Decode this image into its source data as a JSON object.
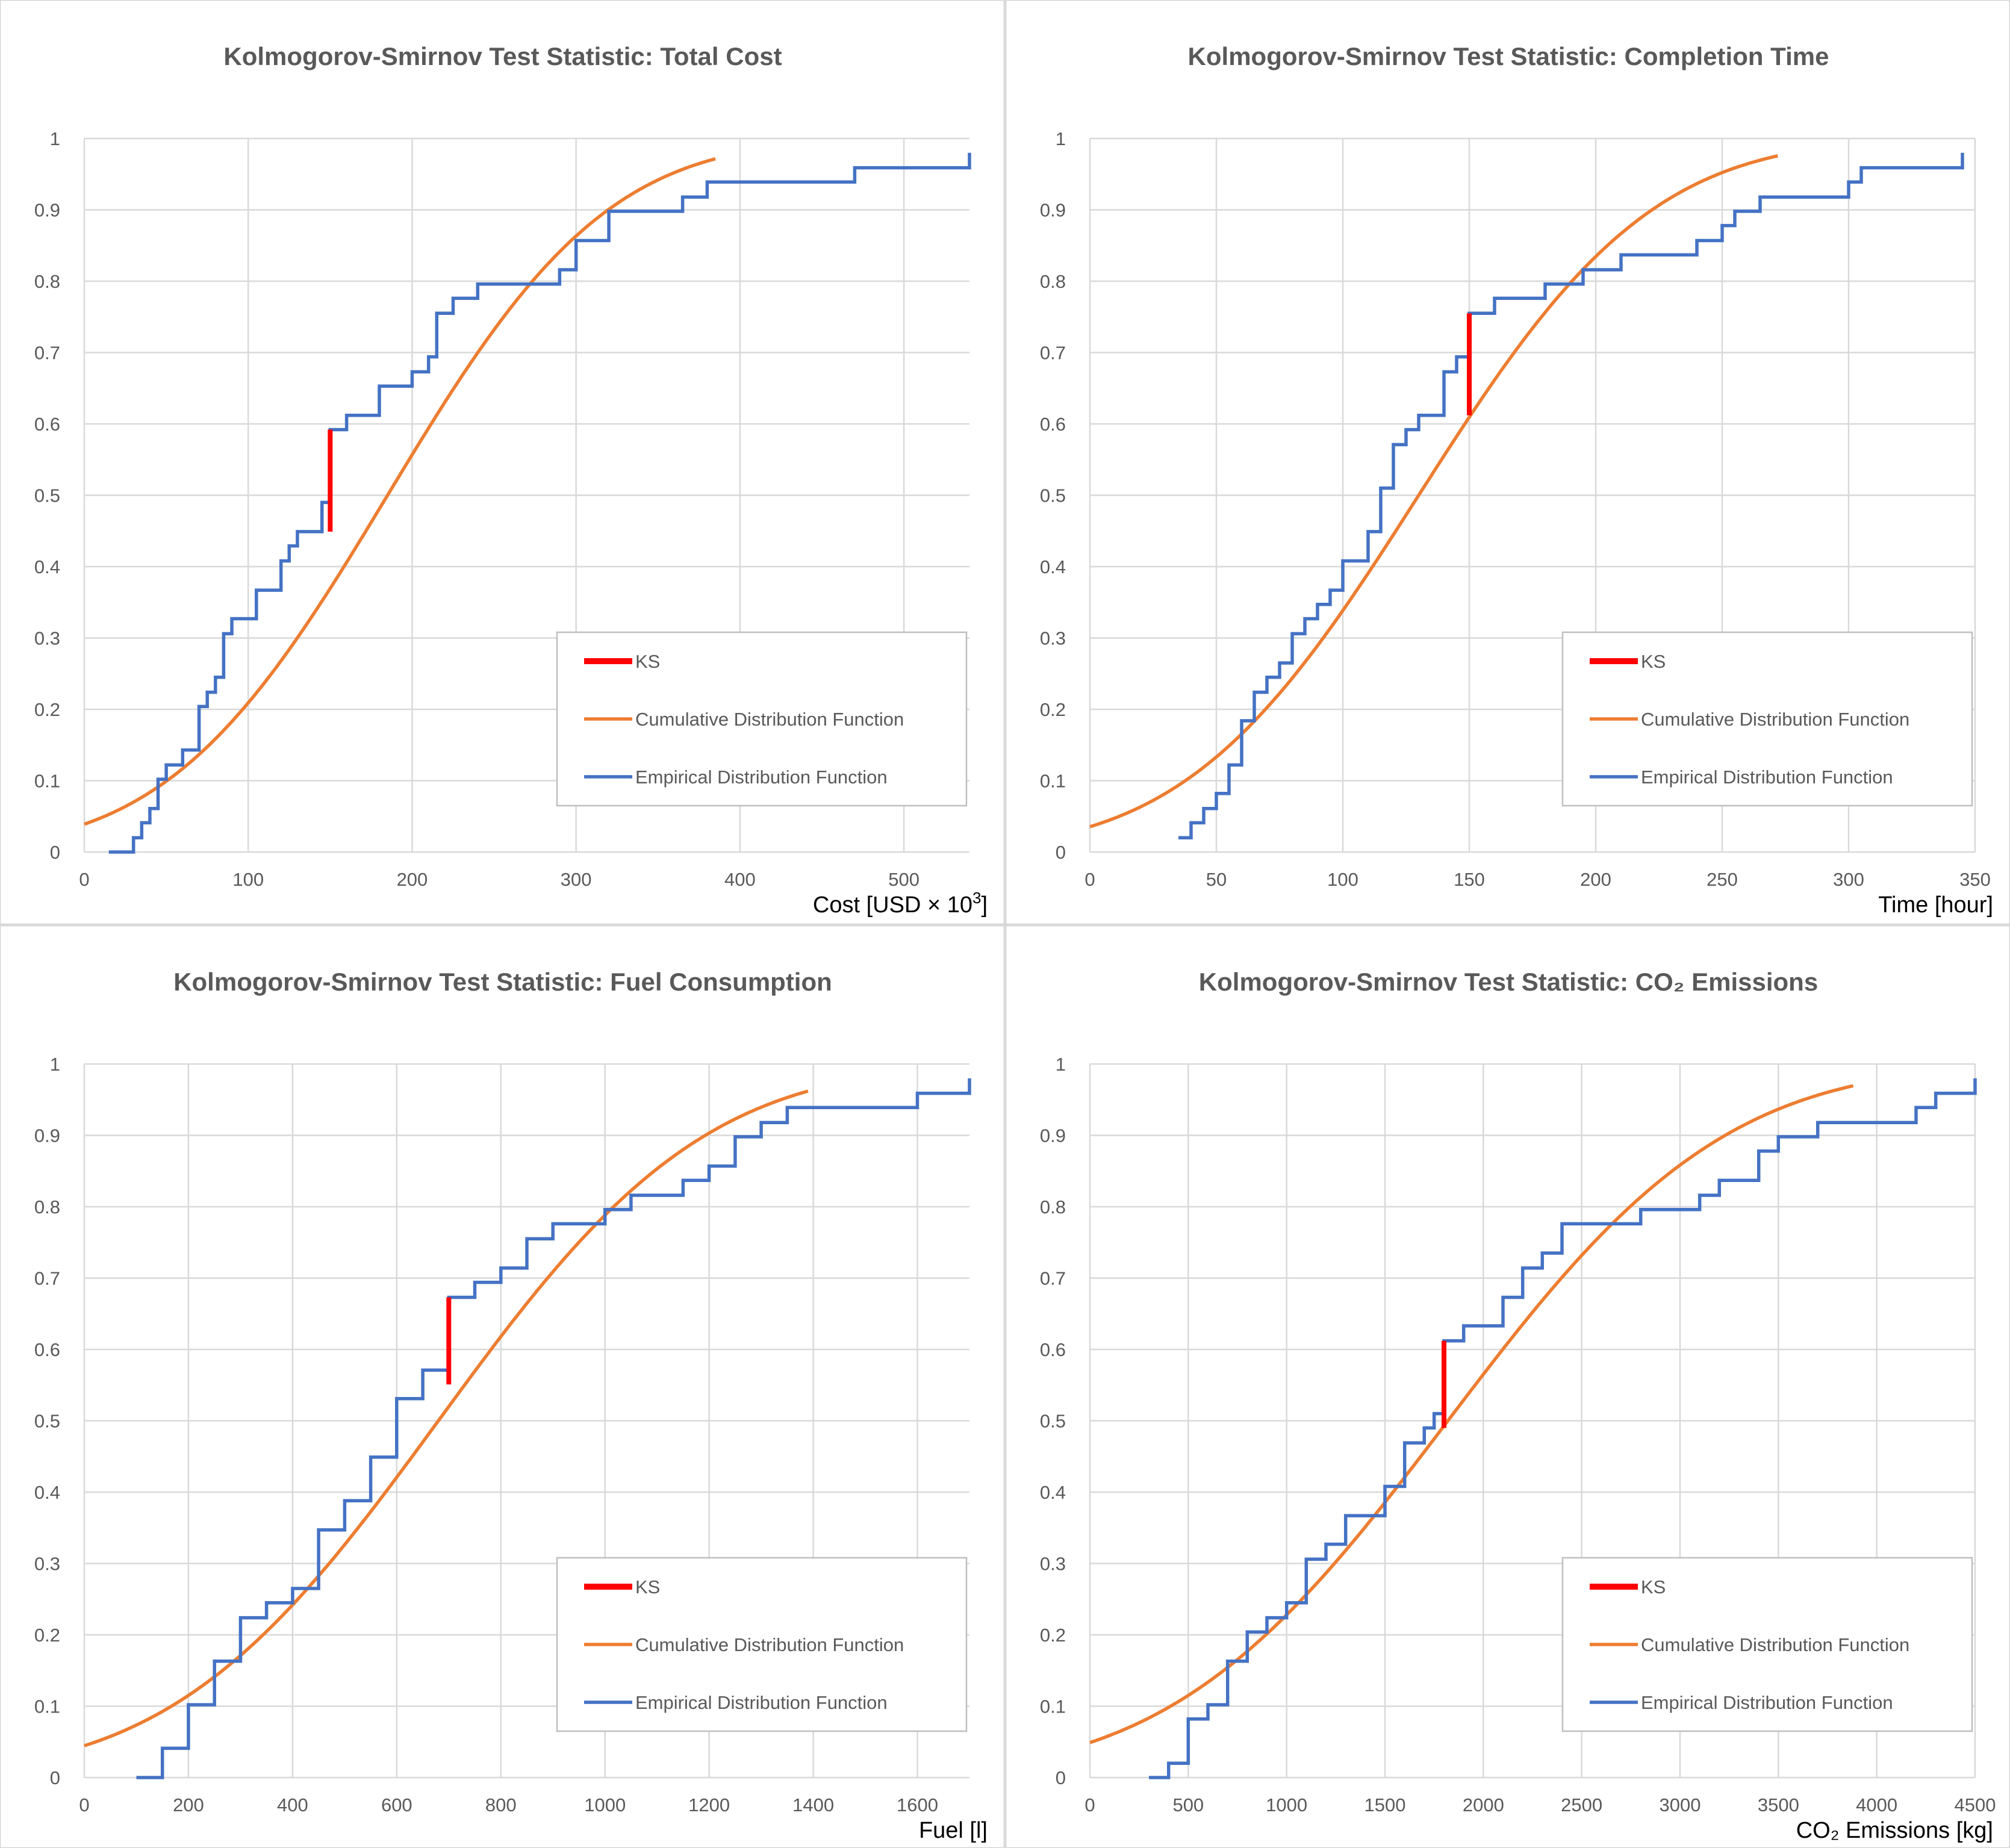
{
  "chart_data": [
    {
      "type": "line",
      "title": "Kolmogorov-Smirnov Test Statistic: Total Cost",
      "xlabel": "Cost [USD × 10",
      "xlabel_sup": "3",
      "xlabel_tail": "]",
      "ylabel": "",
      "xlim": [
        0,
        540
      ],
      "ylim": [
        0,
        1
      ],
      "xticks": [
        0,
        100,
        200,
        300,
        400,
        500
      ],
      "yticks": [
        0,
        0.1,
        0.2,
        0.3,
        0.4,
        0.5,
        0.6,
        0.7,
        0.8,
        0.9,
        1
      ],
      "grid": true,
      "legend_position": "bottom-right",
      "legend": [
        "KS",
        "Cumulative Distribution Function",
        "Empirical Distribution Function"
      ],
      "colors": {
        "ks": "#ff0000",
        "cdf": "#ed7d31",
        "edf": "#4472c4"
      },
      "cdf": {
        "mean": 185,
        "sd": 105,
        "x_end": 385
      },
      "edf_steps": [
        [
          15,
          0
        ],
        [
          30,
          0.02
        ],
        [
          35,
          0.041
        ],
        [
          40,
          0.061
        ],
        [
          45,
          0.102
        ],
        [
          50,
          0.122
        ],
        [
          60,
          0.143
        ],
        [
          70,
          0.204
        ],
        [
          75,
          0.224
        ],
        [
          80,
          0.245
        ],
        [
          85,
          0.306
        ],
        [
          90,
          0.327
        ],
        [
          105,
          0.367
        ],
        [
          120,
          0.408
        ],
        [
          125,
          0.429
        ],
        [
          130,
          0.449
        ],
        [
          145,
          0.49
        ],
        [
          150,
          0.592
        ],
        [
          160,
          0.612
        ],
        [
          180,
          0.653
        ],
        [
          200,
          0.673
        ],
        [
          210,
          0.694
        ],
        [
          215,
          0.755
        ],
        [
          225,
          0.776
        ],
        [
          240,
          0.796
        ],
        [
          290,
          0.816
        ],
        [
          300,
          0.857
        ],
        [
          320,
          0.898
        ],
        [
          365,
          0.918
        ],
        [
          380,
          0.939
        ],
        [
          470,
          0.959
        ],
        [
          540,
          0.98
        ]
      ],
      "ks": {
        "x": 150,
        "y_low": 0.449,
        "y_high": 0.592
      }
    },
    {
      "type": "line",
      "title": "Kolmogorov-Smirnov Test Statistic: Completion Time",
      "xlabel": "Time [hour]",
      "xlabel_sup": "",
      "xlabel_tail": "",
      "ylabel": "",
      "xlim": [
        0,
        350
      ],
      "ylim": [
        0,
        1
      ],
      "xticks": [
        0,
        50,
        100,
        150,
        200,
        250,
        300,
        350
      ],
      "yticks": [
        0,
        0.1,
        0.2,
        0.3,
        0.4,
        0.5,
        0.6,
        0.7,
        0.8,
        0.9,
        1
      ],
      "grid": true,
      "legend_position": "bottom-right",
      "legend": [
        "KS",
        "Cumulative Distribution Function",
        "Empirical Distribution Function"
      ],
      "colors": {
        "ks": "#ff0000",
        "cdf": "#ed7d31",
        "edf": "#4472c4"
      },
      "cdf": {
        "mean": 130,
        "sd": 72,
        "x_end": 272
      },
      "edf_steps": [
        [
          35,
          0.02
        ],
        [
          40,
          0.041
        ],
        [
          45,
          0.061
        ],
        [
          50,
          0.082
        ],
        [
          55,
          0.122
        ],
        [
          60,
          0.184
        ],
        [
          65,
          0.224
        ],
        [
          70,
          0.245
        ],
        [
          75,
          0.265
        ],
        [
          80,
          0.306
        ],
        [
          85,
          0.327
        ],
        [
          90,
          0.347
        ],
        [
          95,
          0.367
        ],
        [
          100,
          0.408
        ],
        [
          110,
          0.449
        ],
        [
          115,
          0.51
        ],
        [
          120,
          0.571
        ],
        [
          125,
          0.592
        ],
        [
          130,
          0.612
        ],
        [
          140,
          0.673
        ],
        [
          145,
          0.694
        ],
        [
          150,
          0.755
        ],
        [
          160,
          0.776
        ],
        [
          180,
          0.796
        ],
        [
          195,
          0.816
        ],
        [
          210,
          0.837
        ],
        [
          240,
          0.857
        ],
        [
          250,
          0.878
        ],
        [
          255,
          0.898
        ],
        [
          265,
          0.918
        ],
        [
          300,
          0.939
        ],
        [
          305,
          0.959
        ],
        [
          345,
          0.98
        ]
      ],
      "ks": {
        "x": 150,
        "y_low": 0.612,
        "y_high": 0.755
      }
    },
    {
      "type": "line",
      "title": "Kolmogorov-Smirnov Test Statistic: Fuel Consumption",
      "xlabel": "Fuel [l]",
      "xlabel_sup": "",
      "xlabel_tail": "",
      "ylabel": "",
      "xlim": [
        0,
        1700
      ],
      "ylim": [
        0,
        1
      ],
      "xticks": [
        0,
        200,
        400,
        600,
        800,
        1000,
        1200,
        1400,
        1600
      ],
      "yticks": [
        0,
        0.1,
        0.2,
        0.3,
        0.4,
        0.5,
        0.6,
        0.7,
        0.8,
        0.9,
        1
      ],
      "grid": true,
      "legend_position": "bottom-right",
      "legend": [
        "KS",
        "Cumulative Distribution Function",
        "Empirical Distribution Function"
      ],
      "colors": {
        "ks": "#ff0000",
        "cdf": "#ed7d31",
        "edf": "#4472c4"
      },
      "cdf": {
        "mean": 680,
        "sd": 400,
        "x_end": 1390
      },
      "edf_steps": [
        [
          100,
          0
        ],
        [
          150,
          0.041
        ],
        [
          200,
          0.102
        ],
        [
          250,
          0.163
        ],
        [
          300,
          0.224
        ],
        [
          350,
          0.245
        ],
        [
          400,
          0.265
        ],
        [
          450,
          0.347
        ],
        [
          500,
          0.388
        ],
        [
          550,
          0.449
        ],
        [
          600,
          0.531
        ],
        [
          650,
          0.571
        ],
        [
          700,
          0.673
        ],
        [
          750,
          0.694
        ],
        [
          800,
          0.714
        ],
        [
          850,
          0.755
        ],
        [
          900,
          0.776
        ],
        [
          1000,
          0.796
        ],
        [
          1050,
          0.816
        ],
        [
          1150,
          0.837
        ],
        [
          1200,
          0.857
        ],
        [
          1250,
          0.898
        ],
        [
          1300,
          0.918
        ],
        [
          1350,
          0.939
        ],
        [
          1600,
          0.959
        ],
        [
          1700,
          0.98
        ]
      ],
      "ks": {
        "x": 700,
        "y_low": 0.551,
        "y_high": 0.673
      }
    },
    {
      "type": "line",
      "title": "Kolmogorov-Smirnov Test Statistic: CO₂ Emissions",
      "xlabel": "CO₂ Emissions [kg]",
      "xlabel_sup": "",
      "xlabel_tail": "",
      "ylabel": "",
      "xlim": [
        0,
        4500
      ],
      "ylim": [
        0,
        1
      ],
      "xticks": [
        0,
        500,
        1000,
        1500,
        2000,
        2500,
        3000,
        3500,
        4000,
        4500
      ],
      "yticks": [
        0,
        0.1,
        0.2,
        0.3,
        0.4,
        0.5,
        0.6,
        0.7,
        0.8,
        0.9,
        1
      ],
      "grid": true,
      "legend_position": "bottom-right",
      "legend": [
        "KS",
        "Cumulative Distribution Function",
        "Empirical Distribution Function"
      ],
      "colors": {
        "ks": "#ff0000",
        "cdf": "#ed7d31",
        "edf": "#4472c4"
      },
      "cdf": {
        "mean": 1820,
        "sd": 1100,
        "x_end": 3880
      },
      "edf_steps": [
        [
          300,
          0
        ],
        [
          400,
          0.02
        ],
        [
          500,
          0.082
        ],
        [
          600,
          0.102
        ],
        [
          700,
          0.163
        ],
        [
          800,
          0.204
        ],
        [
          900,
          0.224
        ],
        [
          1000,
          0.245
        ],
        [
          1100,
          0.306
        ],
        [
          1200,
          0.327
        ],
        [
          1300,
          0.367
        ],
        [
          1500,
          0.408
        ],
        [
          1600,
          0.469
        ],
        [
          1700,
          0.49
        ],
        [
          1750,
          0.51
        ],
        [
          1800,
          0.612
        ],
        [
          1900,
          0.633
        ],
        [
          2100,
          0.673
        ],
        [
          2200,
          0.714
        ],
        [
          2300,
          0.735
        ],
        [
          2400,
          0.776
        ],
        [
          2800,
          0.796
        ],
        [
          3100,
          0.816
        ],
        [
          3200,
          0.837
        ],
        [
          3400,
          0.878
        ],
        [
          3500,
          0.898
        ],
        [
          3700,
          0.918
        ],
        [
          4200,
          0.939
        ],
        [
          4300,
          0.959
        ],
        [
          4500,
          0.98
        ]
      ],
      "ks": {
        "x": 1800,
        "y_low": 0.49,
        "y_high": 0.612
      }
    }
  ]
}
